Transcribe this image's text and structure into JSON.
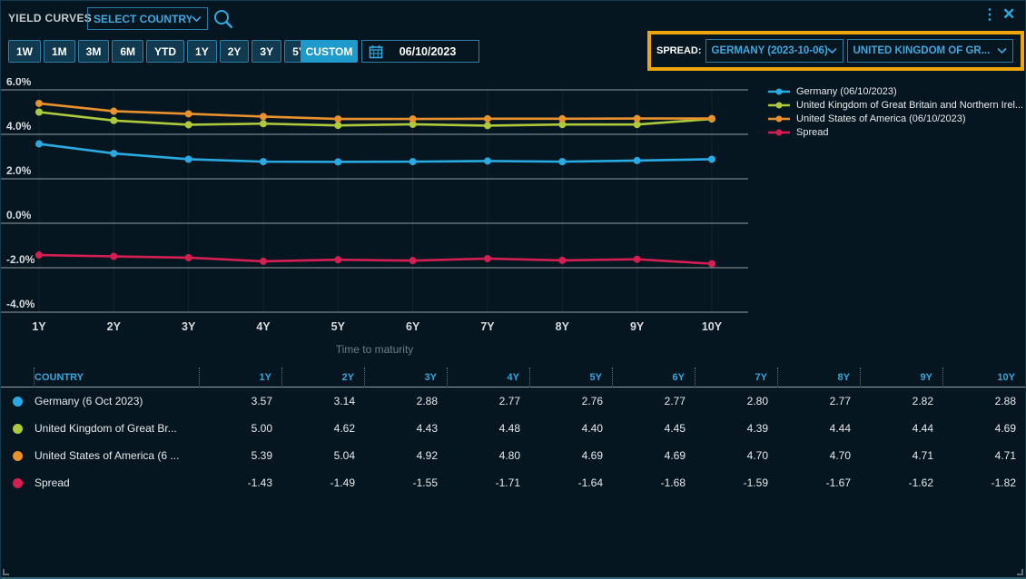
{
  "window": {
    "title": "YIELD CURVES",
    "select_country_placeholder": "SELECT COUNTRY"
  },
  "icons": {
    "kebab": "⋮",
    "close": "✕"
  },
  "toolbar": {
    "ranges": [
      "1W",
      "1M",
      "3M",
      "6M",
      "YTD",
      "1Y",
      "2Y",
      "3Y",
      "5Y"
    ],
    "custom_label": "CUSTOM",
    "date_value": "06/10/2023"
  },
  "spread_selector": {
    "label": "SPREAD:",
    "left_value": "GERMANY (2023-10-06)",
    "right_value": "UNITED KINGDOM OF GR...",
    "highlight_color": "#F0A50F"
  },
  "chart_data": {
    "type": "line",
    "x_categories": [
      "1Y",
      "2Y",
      "3Y",
      "4Y",
      "5Y",
      "6Y",
      "7Y",
      "8Y",
      "9Y",
      "10Y"
    ],
    "xlabel": "Time to maturity",
    "ylabel": "",
    "ylim": [
      -4.6,
      6.5
    ],
    "grid": true,
    "legend_position": "right",
    "y_ticks": [
      {
        "value": 6,
        "label": "6.0%"
      },
      {
        "value": 4,
        "label": "4.0%"
      },
      {
        "value": 2,
        "label": "2.0%"
      },
      {
        "value": 0,
        "label": "0.0%"
      },
      {
        "value": -2,
        "label": "-2.0%"
      },
      {
        "value": -4,
        "label": "-4.0%"
      }
    ],
    "series": [
      {
        "name": "Germany (06/10/2023)",
        "color": "#29ABE2",
        "values": [
          3.57,
          3.14,
          2.88,
          2.77,
          2.76,
          2.77,
          2.8,
          2.77,
          2.82,
          2.88
        ]
      },
      {
        "name": "United Kingdom of Great Britain and Northern Irel...",
        "color": "#AFC93C",
        "values": [
          5.0,
          4.62,
          4.43,
          4.48,
          4.4,
          4.45,
          4.39,
          4.44,
          4.44,
          4.69
        ]
      },
      {
        "name": "United States of America (06/10/2023)",
        "color": "#E8912D",
        "values": [
          5.39,
          5.04,
          4.92,
          4.8,
          4.69,
          4.69,
          4.7,
          4.7,
          4.71,
          4.71
        ]
      },
      {
        "name": "Spread",
        "color": "#D51F53",
        "values": [
          -1.43,
          -1.49,
          -1.55,
          -1.71,
          -1.64,
          -1.68,
          -1.59,
          -1.67,
          -1.62,
          -1.82
        ]
      }
    ]
  },
  "table": {
    "columns": [
      "COUNTRY",
      "1Y",
      "2Y",
      "3Y",
      "4Y",
      "5Y",
      "6Y",
      "7Y",
      "8Y",
      "9Y",
      "10Y"
    ],
    "rows": [
      {
        "label": "Germany (6 Oct 2023)",
        "color": "#29ABE2",
        "values": [
          "3.57",
          "3.14",
          "2.88",
          "2.77",
          "2.76",
          "2.77",
          "2.80",
          "2.77",
          "2.82",
          "2.88"
        ]
      },
      {
        "label": "United Kingdom of Great Br...",
        "color": "#AFC93C",
        "values": [
          "5.00",
          "4.62",
          "4.43",
          "4.48",
          "4.40",
          "4.45",
          "4.39",
          "4.44",
          "4.44",
          "4.69"
        ]
      },
      {
        "label": "United States of America (6 ...",
        "color": "#E8912D",
        "values": [
          "5.39",
          "5.04",
          "4.92",
          "4.80",
          "4.69",
          "4.69",
          "4.70",
          "4.70",
          "4.71",
          "4.71"
        ]
      },
      {
        "label": "Spread",
        "color": "#D51F53",
        "values": [
          "-1.43",
          "-1.49",
          "-1.55",
          "-1.71",
          "-1.64",
          "-1.68",
          "-1.59",
          "-1.67",
          "-1.62",
          "-1.82"
        ]
      }
    ]
  }
}
